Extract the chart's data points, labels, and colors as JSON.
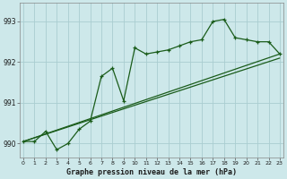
{
  "title": "Graphe pression niveau de la mer (hPa)",
  "bg_color": "#cde8ea",
  "grid_color": "#aacdd0",
  "line_color": "#1a5c1a",
  "x_ticks": [
    0,
    1,
    2,
    3,
    4,
    5,
    6,
    7,
    8,
    9,
    10,
    11,
    12,
    13,
    14,
    15,
    16,
    17,
    18,
    19,
    20,
    21,
    22,
    23
  ],
  "y_ticks": [
    990,
    991,
    992,
    993
  ],
  "ylim": [
    989.65,
    993.45
  ],
  "xlim": [
    -0.3,
    23.3
  ],
  "main_line_x": [
    0,
    1,
    2,
    3,
    4,
    5,
    6,
    7,
    8,
    9,
    10,
    11,
    12,
    13,
    14,
    15,
    16,
    17,
    18,
    19,
    20,
    21,
    22,
    23
  ],
  "main_line_y": [
    990.05,
    990.05,
    990.3,
    989.85,
    990.0,
    990.35,
    990.55,
    991.65,
    991.85,
    991.05,
    992.35,
    992.2,
    992.25,
    992.3,
    992.4,
    992.5,
    992.55,
    993.0,
    993.05,
    992.6,
    992.55,
    992.5,
    992.5,
    992.2
  ],
  "line2_x": [
    0,
    23
  ],
  "line2_y": [
    990.05,
    992.2
  ],
  "line3_x": [
    0,
    23
  ],
  "line3_y": [
    990.05,
    992.1
  ],
  "figsize": [
    3.2,
    2.0
  ],
  "dpi": 100
}
